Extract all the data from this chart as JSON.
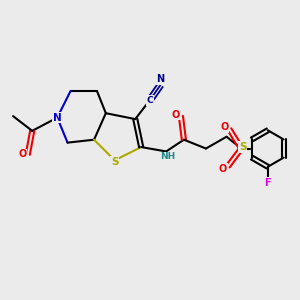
{
  "bg_color": "#ebebeb",
  "atom_colors": {
    "C": "#000000",
    "N": "#0000cc",
    "S": "#aaaa00",
    "O": "#ee0000",
    "F": "#dd00dd",
    "NH": "#228888",
    "CN": "#00008b"
  },
  "figsize": [
    3.0,
    3.0
  ],
  "dpi": 100
}
